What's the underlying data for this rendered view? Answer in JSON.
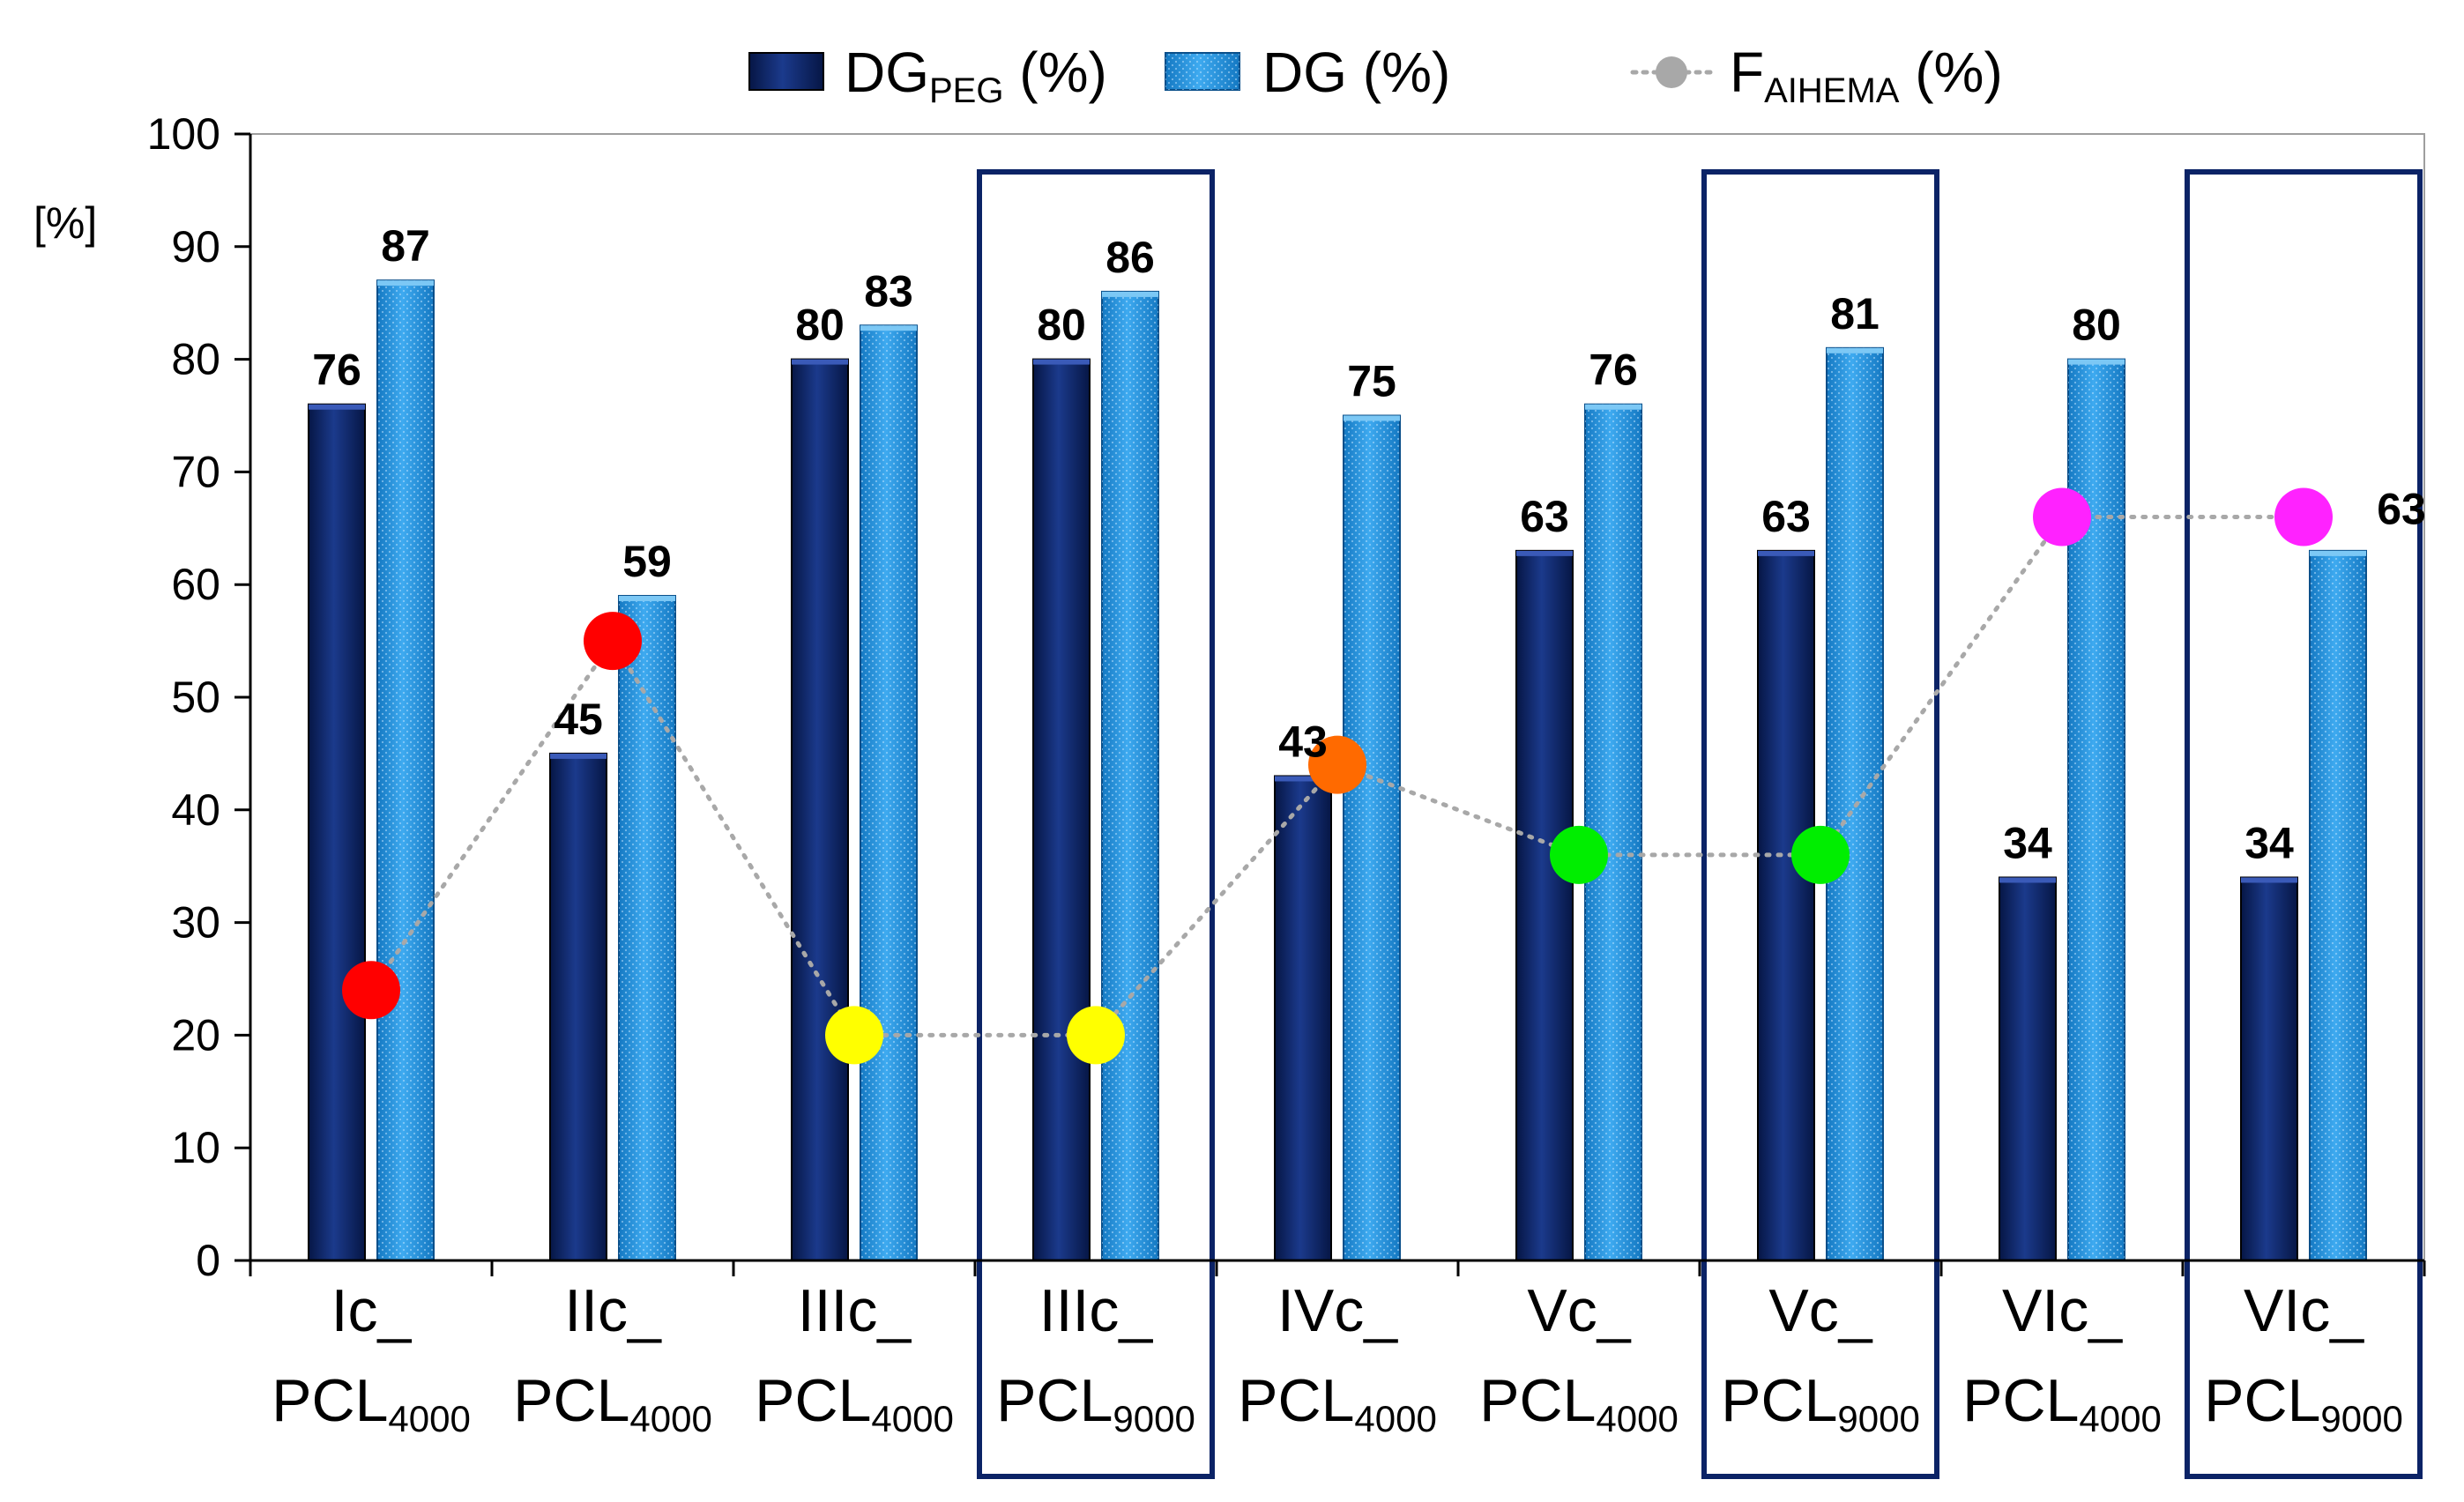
{
  "chart_data": {
    "type": "bar",
    "categories": [
      {
        "main": "Ic_",
        "base": "PCL",
        "sub": "4000"
      },
      {
        "main": "IIc_",
        "base": "PCL",
        "sub": "4000"
      },
      {
        "main": "IIIc_",
        "base": "PCL",
        "sub": "4000"
      },
      {
        "main": "IIIc_",
        "base": "PCL",
        "sub": "9000"
      },
      {
        "main": "IVc_",
        "base": "PCL",
        "sub": "4000"
      },
      {
        "main": "Vc_",
        "base": "PCL",
        "sub": "4000"
      },
      {
        "main": "Vc_",
        "base": "PCL",
        "sub": "9000"
      },
      {
        "main": "VIc_",
        "base": "PCL",
        "sub": "4000"
      },
      {
        "main": "VIc_",
        "base": "PCL",
        "sub": "9000"
      }
    ],
    "series": [
      {
        "name": "DG_PEG (%)",
        "legend_main": "DG",
        "legend_sub": "PEG",
        "legend_suffix": " (%)",
        "color": "#0b2366",
        "values": [
          76,
          45,
          80,
          80,
          43,
          63,
          63,
          34,
          34
        ],
        "labels": [
          "76",
          "45",
          "80",
          "80",
          "43",
          "63",
          "63",
          "34",
          "34"
        ]
      },
      {
        "name": "DG (%)",
        "legend_main": "DG (%)",
        "legend_sub": "",
        "legend_suffix": "",
        "color": "#1f8fd6",
        "values": [
          87,
          59,
          83,
          86,
          75,
          76,
          81,
          80,
          63
        ],
        "labels": [
          "87",
          "59",
          "83",
          "86",
          "75",
          "76",
          "81",
          "80",
          "63"
        ]
      }
    ],
    "line_series": {
      "name": "F_AIHEMA (%)",
      "legend_main": "F",
      "legend_sub": "AIHEMA",
      "legend_suffix": " (%)",
      "values": [
        24,
        55,
        20,
        20,
        44,
        36,
        36,
        66,
        66
      ],
      "point_colors": [
        "#ff0000",
        "#ff0000",
        "#ffff00",
        "#ffff00",
        "#ff6a00",
        "#00ee00",
        "#00ee00",
        "#ff22ff",
        "#ff22ff"
      ],
      "line_color": "#a8a8a8"
    },
    "ylabel": "[%]",
    "ylim": [
      0,
      100
    ],
    "yticks": [
      0,
      10,
      20,
      30,
      40,
      50,
      60,
      70,
      80,
      90,
      100
    ],
    "highlighted_categories": [
      3,
      6,
      8
    ],
    "highlight_color": "#0b2366",
    "grid": false,
    "legend_position": "top"
  }
}
